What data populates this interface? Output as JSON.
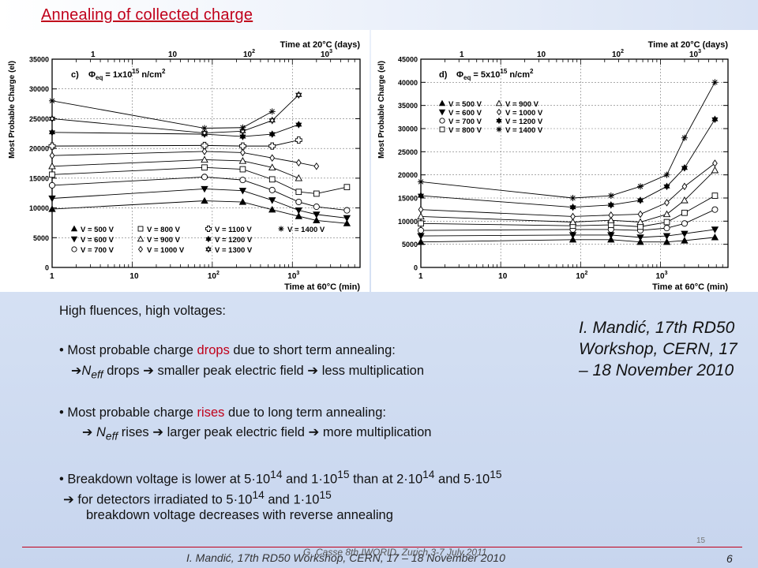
{
  "slide": {
    "title": "Annealing of collected charge",
    "intro": "High fluences, high voltages:",
    "b1_pre": "• Most probable charge ",
    "b1_hl": "drops",
    "b1_post": " due to short term annealing:",
    "b1_sub_arrow": "➔",
    "b1_sub_n": "N",
    "b1_sub_eff": "eff",
    "b1_sub_text": " drops ➔ smaller peak electric field ➔ less multiplication",
    "b2_pre": "• Most probable charge ",
    "b2_hl": "rises",
    "b2_post": " due to long term annealing:",
    "b2_sub_arrow": "➔",
    "b2_sub_n": "N",
    "b2_sub_eff": "eff",
    "b2_sub_text": " rises ➔ larger peak electric field ➔ more multiplication",
    "b3_a": "• Breakdown voltage is lower at 5·10",
    "b3_e1": "14",
    "b3_b": " and 1·10",
    "b3_e2": "15",
    "b3_c": " than at 2·10",
    "b3_e3": "14",
    "b3_d": " and 5·10",
    "b3_e4": "15",
    "b3_sub1_a": "➔ for detectors irradiated to 5·10",
    "b3_sub1_e1": "14",
    "b3_sub1_b": " and 1·10",
    "b3_sub1_e2": "15",
    "b3_sub2": "breakdown voltage decreases with reverse annealing",
    "credit": "I. Mandić, 17th RD50 Workshop, CERN, 17 – 18 November 2010",
    "footer_overlay": "G. Casse 8th IWORID, Zurich 3-7 July 2011",
    "footer_main": "I. Mandić, 17th RD50 Workshop, CERN, 17 – 18 November 2010",
    "page_small": "15",
    "page": "6"
  },
  "colors": {
    "title_red": "#c0001a",
    "axis": "#000000"
  },
  "chart_data": [
    {
      "type": "line",
      "panel_label": "c)",
      "fluence_sym": "Φ",
      "fluence_sub": "eq",
      "fluence_text": " = 1x10",
      "fluence_exp": "15",
      "fluence_unit": " n/cm",
      "fluence_unit_exp": "2",
      "xlabel": "Time at 60°C (min)",
      "x2label": "Time at 20°C (days)",
      "ylabel": "Most Probable Charge (el)",
      "xscale": "log",
      "xlim": [
        1,
        7000
      ],
      "ylim": [
        0,
        35000
      ],
      "yticks": [
        0,
        5000,
        10000,
        15000,
        20000,
        25000,
        30000,
        35000
      ],
      "xticks": [
        {
          "v": 1,
          "t": "1"
        },
        {
          "v": 10,
          "t": "10"
        },
        {
          "v": 100,
          "t": "10",
          "e": "2"
        },
        {
          "v": 1000,
          "t": "10",
          "e": "3"
        }
      ],
      "x2ticks": [
        {
          "t": "1"
        },
        {
          "t": "10"
        },
        {
          "t": "10",
          "e": "2"
        },
        {
          "t": "10",
          "e": "3"
        }
      ],
      "legend_rows": [
        [
          "V = 500 V",
          "V = 800 V",
          "V = 1100 V",
          "V = 1400 V"
        ],
        [
          "V = 600 V",
          "V = 900 V",
          "V = 1200 V"
        ],
        [
          "V = 700 V",
          "V = 1000 V",
          "V = 1300 V"
        ]
      ],
      "series": [
        {
          "name": "V = 500 V",
          "marker": "tri-up",
          "x": [
            1,
            80,
            240,
            560,
            1200,
            2000,
            4800
          ],
          "y": [
            9800,
            11200,
            11000,
            9700,
            8600,
            7900,
            7400
          ]
        },
        {
          "name": "V = 600 V",
          "marker": "tri-down",
          "x": [
            1,
            80,
            240,
            560,
            1200,
            2000,
            4800
          ],
          "y": [
            11600,
            13200,
            12900,
            11300,
            9600,
            8900,
            8300
          ]
        },
        {
          "name": "V = 700 V",
          "marker": "circle",
          "x": [
            1,
            80,
            240,
            560,
            1200,
            2000,
            4800
          ],
          "y": [
            13800,
            15200,
            14700,
            13000,
            11000,
            10200,
            9600
          ]
        },
        {
          "name": "V = 800 V",
          "marker": "square",
          "x": [
            1,
            80,
            240,
            560,
            1200,
            2000,
            4800
          ],
          "y": [
            15600,
            16800,
            16500,
            14800,
            12700,
            12400,
            13500
          ]
        },
        {
          "name": "V = 900 V",
          "marker": "tri-up-open",
          "x": [
            1,
            80,
            240,
            560,
            1200
          ],
          "y": [
            17000,
            18100,
            17900,
            16800,
            15000
          ]
        },
        {
          "name": "V = 1000 V",
          "marker": "diamond",
          "x": [
            1,
            80,
            240,
            560,
            1200,
            2000
          ],
          "y": [
            18800,
            19500,
            19300,
            18400,
            17600,
            17000
          ]
        },
        {
          "name": "V = 1100 V",
          "marker": "cross",
          "x": [
            1,
            80,
            240,
            560,
            1200
          ],
          "y": [
            20400,
            20500,
            20400,
            20400,
            21400
          ]
        },
        {
          "name": "V = 1200 V",
          "marker": "star6",
          "x": [
            1,
            80,
            240,
            560,
            1200
          ],
          "y": [
            22700,
            22400,
            22000,
            22400,
            24000
          ]
        },
        {
          "name": "V = 1300 V",
          "marker": "star-open",
          "x": [
            1,
            80,
            240,
            560,
            1200
          ],
          "y": [
            25000,
            22600,
            22900,
            24700,
            29000
          ]
        },
        {
          "name": "V = 1400 V",
          "marker": "asterisk",
          "x": [
            1,
            80,
            240,
            560
          ],
          "y": [
            28000,
            23400,
            23500,
            26200
          ]
        }
      ]
    },
    {
      "type": "line",
      "panel_label": "d)",
      "fluence_sym": "Φ",
      "fluence_sub": "eq",
      "fluence_text": " = 5x10",
      "fluence_exp": "15",
      "fluence_unit": " n/cm",
      "fluence_unit_exp": "2",
      "xlabel": "Time at 60°C (min)",
      "x2label": "Time at 20°C (days)",
      "ylabel": "Most Probable Charge (el)",
      "xscale": "log",
      "xlim": [
        1,
        7000
      ],
      "ylim": [
        0,
        45000
      ],
      "yticks": [
        0,
        5000,
        10000,
        15000,
        20000,
        25000,
        30000,
        35000,
        40000,
        45000
      ],
      "xticks": [
        {
          "v": 1,
          "t": "1"
        },
        {
          "v": 10,
          "t": "10"
        },
        {
          "v": 100,
          "t": "10",
          "e": "2"
        },
        {
          "v": 1000,
          "t": "10",
          "e": "3"
        }
      ],
      "x2ticks": [
        {
          "t": "1"
        },
        {
          "t": "10"
        },
        {
          "t": "10",
          "e": "2"
        },
        {
          "t": "10",
          "e": "3"
        }
      ],
      "legend_rows": [
        [
          "V = 500 V",
          "V = 900 V"
        ],
        [
          "V = 600 V",
          "V = 1000 V"
        ],
        [
          "V = 700 V",
          "V = 1200 V"
        ],
        [
          "V = 800 V",
          "V = 1400 V"
        ]
      ],
      "series": [
        {
          "name": "V = 500 V",
          "marker": "tri-up",
          "x": [
            1,
            80,
            240,
            560,
            1200,
            2000,
            4800
          ],
          "y": [
            5500,
            6000,
            6000,
            5500,
            5500,
            5800,
            6500
          ]
        },
        {
          "name": "V = 600 V",
          "marker": "tri-down",
          "x": [
            1,
            80,
            240,
            560,
            1200,
            2000,
            4800
          ],
          "y": [
            6800,
            7000,
            7000,
            6500,
            6800,
            7300,
            8200
          ]
        },
        {
          "name": "V = 700 V",
          "marker": "circle",
          "x": [
            1,
            80,
            240,
            560,
            1200,
            2000,
            4800
          ],
          "y": [
            8000,
            8200,
            8200,
            8000,
            8500,
            9500,
            12500
          ]
        },
        {
          "name": "V = 800 V",
          "marker": "square",
          "x": [
            1,
            80,
            240,
            560,
            1200,
            2000,
            4800
          ],
          "y": [
            9500,
            9000,
            9200,
            8800,
            9800,
            11800,
            15500
          ]
        },
        {
          "name": "V = 900 V",
          "marker": "tri-up-open",
          "x": [
            1,
            80,
            240,
            560,
            1200,
            2000,
            4800
          ],
          "y": [
            11000,
            9800,
            10200,
            9800,
            11500,
            14500,
            21000
          ]
        },
        {
          "name": "V = 1000 V",
          "marker": "diamond",
          "x": [
            1,
            80,
            240,
            560,
            1200,
            2000,
            4800
          ],
          "y": [
            12500,
            11000,
            11300,
            11500,
            14000,
            17500,
            22500
          ]
        },
        {
          "name": "V = 1200 V",
          "marker": "star6",
          "x": [
            1,
            80,
            240,
            560,
            1200,
            2000,
            4800
          ],
          "y": [
            15500,
            13000,
            13500,
            14500,
            17500,
            21500,
            32000
          ]
        },
        {
          "name": "V = 1400 V",
          "marker": "asterisk",
          "x": [
            1,
            80,
            240,
            560,
            1200,
            2000,
            4800
          ],
          "y": [
            18500,
            15000,
            15500,
            17500,
            20000,
            28000,
            40000
          ]
        }
      ]
    }
  ]
}
